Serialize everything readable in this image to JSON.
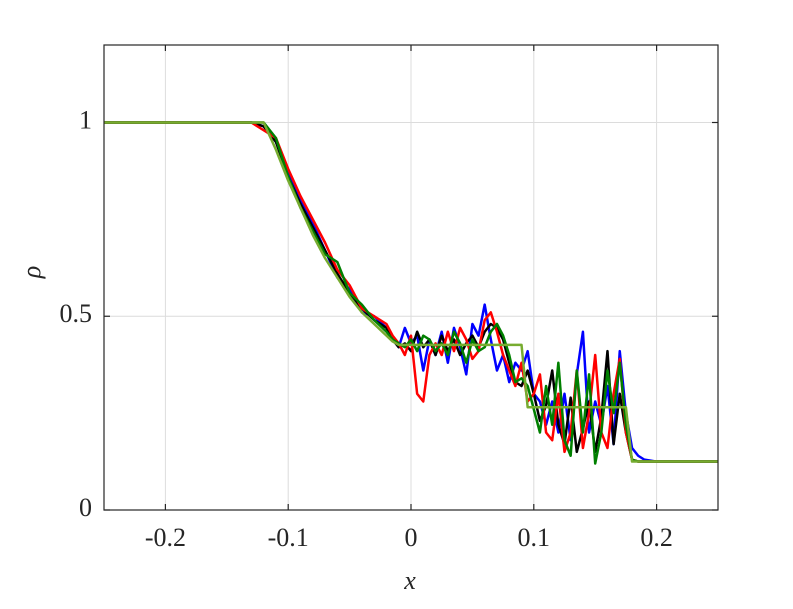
{
  "chart_data": {
    "type": "line",
    "xlabel": "x",
    "ylabel": "ρ",
    "x": [
      -0.25,
      -0.2,
      -0.15,
      -0.13,
      -0.12,
      -0.11,
      -0.1,
      -0.09,
      -0.08,
      -0.07,
      -0.06,
      -0.05,
      -0.04,
      -0.03,
      -0.02,
      -0.015,
      -0.01,
      -0.005,
      0,
      0.005,
      0.01,
      0.015,
      0.02,
      0.025,
      0.03,
      0.035,
      0.04,
      0.045,
      0.05,
      0.055,
      0.06,
      0.065,
      0.07,
      0.075,
      0.08,
      0.085,
      0.09,
      0.095,
      0.1,
      0.105,
      0.11,
      0.115,
      0.12,
      0.125,
      0.13,
      0.135,
      0.14,
      0.145,
      0.15,
      0.155,
      0.16,
      0.165,
      0.17,
      0.175,
      0.18,
      0.185,
      0.19,
      0.2,
      0.25
    ],
    "series": [
      {
        "color": "#0000ff",
        "values": [
          1,
          1,
          1,
          1,
          0.99,
          0.95,
          0.87,
          0.8,
          0.74,
          0.67,
          0.6,
          0.57,
          0.51,
          0.5,
          0.47,
          0.44,
          0.42,
          0.47,
          0.43,
          0.45,
          0.36,
          0.44,
          0.4,
          0.46,
          0.38,
          0.47,
          0.42,
          0.35,
          0.48,
          0.45,
          0.53,
          0.44,
          0.36,
          0.4,
          0.33,
          0.38,
          0.36,
          0.41,
          0.3,
          0.28,
          0.22,
          0.28,
          0.2,
          0.3,
          0.18,
          0.35,
          0.46,
          0.2,
          0.28,
          0.22,
          0.32,
          0.17,
          0.41,
          0.25,
          0.16,
          0.14,
          0.13,
          0.125,
          0.125
        ]
      },
      {
        "color": "#000000",
        "values": [
          1,
          1,
          1,
          1,
          0.99,
          0.95,
          0.86,
          0.79,
          0.73,
          0.67,
          0.61,
          0.56,
          0.52,
          0.49,
          0.47,
          0.44,
          0.42,
          0.43,
          0.41,
          0.46,
          0.42,
          0.44,
          0.4,
          0.45,
          0.41,
          0.44,
          0.4,
          0.43,
          0.45,
          0.42,
          0.46,
          0.48,
          0.47,
          0.44,
          0.38,
          0.33,
          0.32,
          0.36,
          0.3,
          0.23,
          0.27,
          0.36,
          0.22,
          0.17,
          0.29,
          0.15,
          0.21,
          0.28,
          0.15,
          0.24,
          0.41,
          0.17,
          0.3,
          0.2,
          0.13,
          0.125,
          0.125,
          0.125,
          0.125
        ]
      },
      {
        "color": "#ff0000",
        "values": [
          1,
          1,
          1,
          1,
          0.98,
          0.96,
          0.88,
          0.81,
          0.75,
          0.69,
          0.62,
          0.58,
          0.52,
          0.5,
          0.48,
          0.45,
          0.43,
          0.4,
          0.45,
          0.3,
          0.28,
          0.4,
          0.43,
          0.4,
          0.46,
          0.41,
          0.47,
          0.44,
          0.39,
          0.41,
          0.49,
          0.51,
          0.46,
          0.4,
          0.36,
          0.32,
          0.38,
          0.28,
          0.3,
          0.35,
          0.2,
          0.18,
          0.3,
          0.15,
          0.2,
          0.36,
          0.16,
          0.25,
          0.4,
          0.2,
          0.16,
          0.3,
          0.39,
          0.2,
          0.13,
          0.125,
          0.125,
          0.125,
          0.125
        ]
      },
      {
        "color": "#008000",
        "values": [
          1,
          1,
          1,
          1,
          1,
          0.96,
          0.86,
          0.78,
          0.72,
          0.66,
          0.64,
          0.56,
          0.53,
          0.49,
          0.46,
          0.44,
          0.43,
          0.42,
          0.44,
          0.41,
          0.45,
          0.44,
          0.41,
          0.43,
          0.4,
          0.46,
          0.43,
          0.38,
          0.44,
          0.41,
          0.42,
          0.46,
          0.48,
          0.45,
          0.4,
          0.33,
          0.34,
          0.32,
          0.26,
          0.2,
          0.32,
          0.22,
          0.38,
          0.18,
          0.14,
          0.36,
          0.2,
          0.35,
          0.12,
          0.2,
          0.36,
          0.25,
          0.38,
          0.22,
          0.13,
          0.125,
          0.125,
          0.125,
          0.125
        ]
      },
      {
        "color": "#77ac30",
        "values": [
          1,
          1,
          1,
          1,
          1,
          0.93,
          0.85,
          0.78,
          0.71,
          0.65,
          0.6,
          0.55,
          0.51,
          0.48,
          0.45,
          0.435,
          0.426,
          0.426,
          0.426,
          0.426,
          0.426,
          0.426,
          0.426,
          0.426,
          0.426,
          0.426,
          0.426,
          0.426,
          0.426,
          0.426,
          0.426,
          0.426,
          0.426,
          0.426,
          0.426,
          0.426,
          0.426,
          0.265,
          0.265,
          0.265,
          0.265,
          0.265,
          0.265,
          0.265,
          0.265,
          0.265,
          0.265,
          0.265,
          0.265,
          0.265,
          0.265,
          0.265,
          0.265,
          0.265,
          0.125,
          0.125,
          0.125,
          0.125,
          0.125
        ]
      }
    ],
    "xlim": [
      -0.25,
      0.25
    ],
    "xticks": [
      -0.2,
      -0.1,
      0,
      0.1,
      0.2
    ],
    "ylim": [
      0,
      1.2
    ],
    "yticks": [
      0,
      0.5,
      1
    ],
    "grid": true
  }
}
